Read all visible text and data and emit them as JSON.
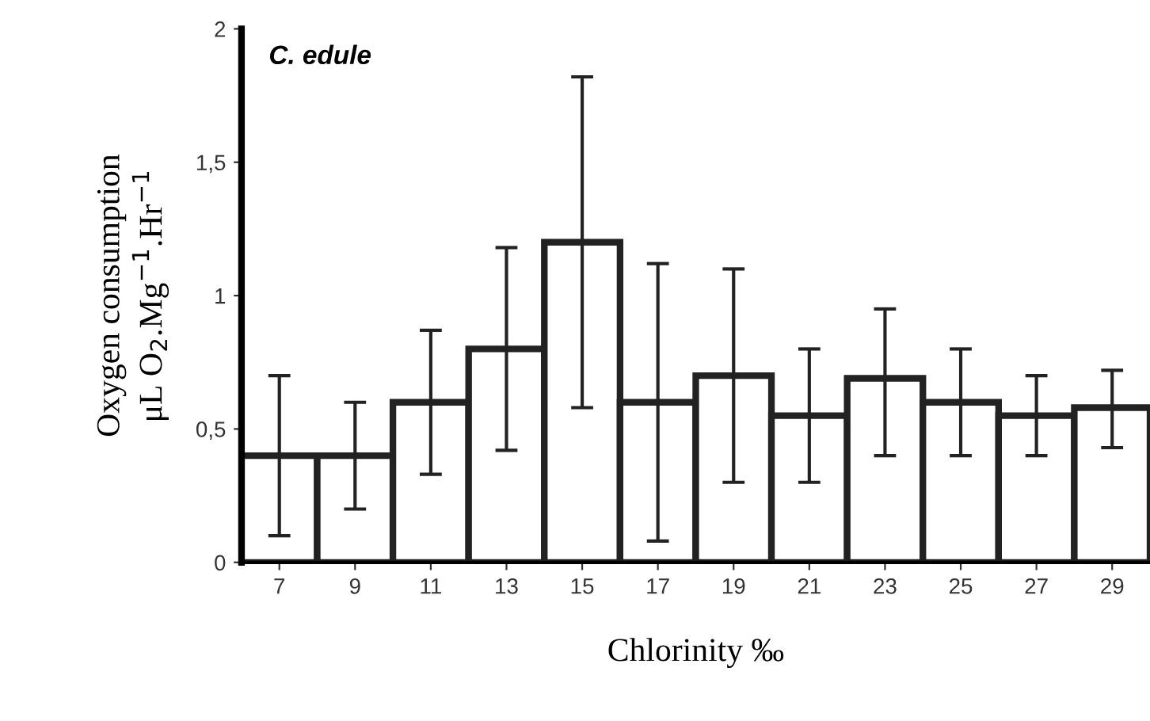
{
  "chart_data": {
    "type": "bar",
    "xlabel": "Chlorinity ‰",
    "ylabel": "Oxygen consumption\nμL O$_{2}$.Mg$^{−1}$.Hr$^{−1}$",
    "annotations": [
      "C. edule"
    ],
    "categories": [
      "7",
      "9",
      "11",
      "13",
      "15",
      "17",
      "19",
      "21",
      "23",
      "25",
      "27",
      "29"
    ],
    "values": [
      0.4,
      0.4,
      0.6,
      0.8,
      1.2,
      0.6,
      0.7,
      0.55,
      0.69,
      0.6,
      0.55,
      0.58
    ],
    "errors": [
      [
        0.1,
        0.7
      ],
      [
        0.2,
        0.6
      ],
      [
        0.33,
        0.87
      ],
      [
        0.42,
        1.18
      ],
      [
        0.58,
        1.82
      ],
      [
        0.08,
        1.12
      ],
      [
        0.3,
        1.1
      ],
      [
        0.3,
        0.8
      ],
      [
        0.4,
        0.95
      ],
      [
        0.4,
        0.8
      ],
      [
        0.4,
        0.7
      ],
      [
        0.43,
        0.72
      ]
    ],
    "color": "#ffffff",
    "ylim": [
      0,
      2
    ],
    "yticks": [
      0,
      {
        "value": 0.5,
        "label": "0,5"
      },
      1,
      {
        "value": 1.5,
        "label": "1,5"
      },
      2
    ],
    "grid": false,
    "legend": false
  }
}
